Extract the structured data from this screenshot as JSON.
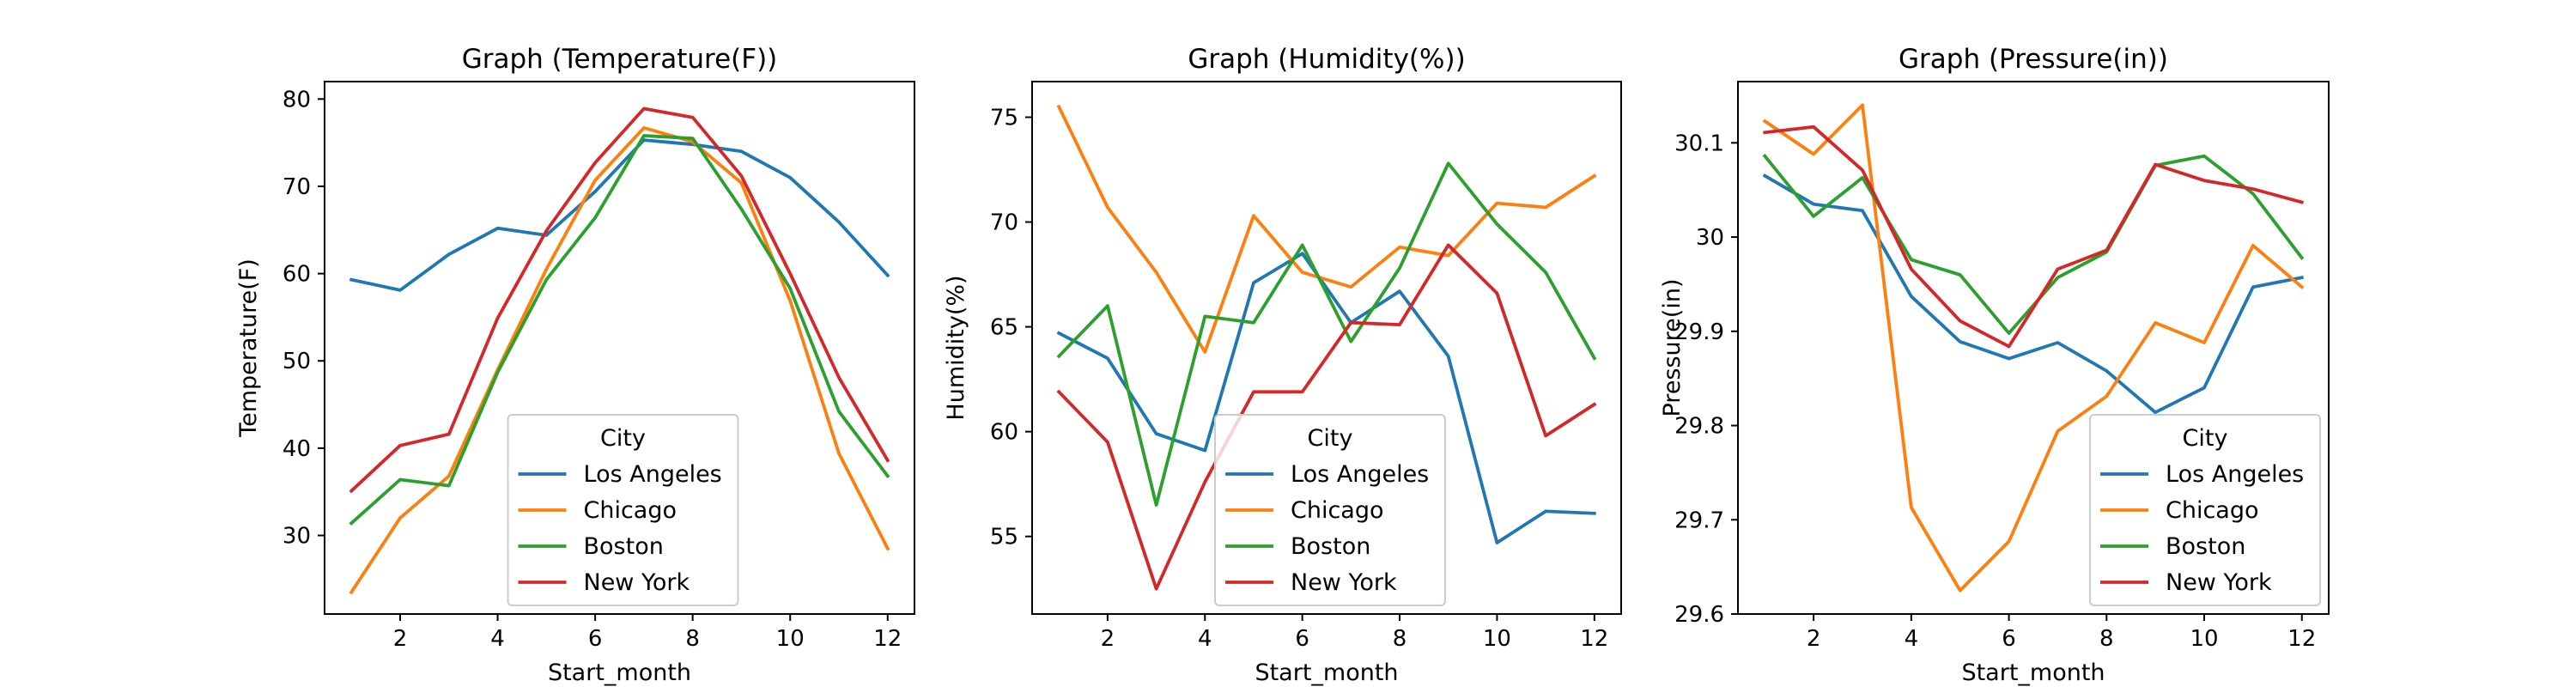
{
  "chart_data": [
    {
      "type": "line",
      "title": "Graph (Temperature(F))",
      "xlabel": "Start_month",
      "ylabel": "Temperature(F)",
      "x": [
        1,
        2,
        3,
        4,
        5,
        6,
        7,
        8,
        9,
        10,
        11,
        12
      ],
      "xticks": [
        2,
        4,
        6,
        8,
        10,
        12
      ],
      "xlim": [
        0.45,
        12.55
      ],
      "ylim": [
        21,
        82
      ],
      "yticks": [
        30,
        40,
        50,
        60,
        70,
        80
      ],
      "grid": false,
      "legend": {
        "title": "City",
        "placement": "lower center"
      },
      "series": [
        {
          "name": "Los Angeles",
          "color": "#1f77b4",
          "values": [
            59.3,
            58.1,
            62.2,
            65.2,
            64.4,
            69.4,
            75.3,
            74.8,
            74.0,
            71.0,
            65.9,
            59.8
          ]
        },
        {
          "name": "Chicago",
          "color": "#ff7f0e",
          "values": [
            23.5,
            32.0,
            36.8,
            49.0,
            60.5,
            70.7,
            76.7,
            75.1,
            70.4,
            56.9,
            39.4,
            28.5
          ]
        },
        {
          "name": "Boston",
          "color": "#2ca02c",
          "values": [
            31.4,
            36.4,
            35.7,
            48.7,
            59.3,
            66.4,
            75.8,
            75.5,
            67.4,
            58.3,
            44.2,
            36.8
          ]
        },
        {
          "name": "New York",
          "color": "#d62728",
          "values": [
            35.1,
            40.3,
            41.6,
            54.9,
            64.9,
            72.7,
            78.9,
            77.9,
            71.2,
            60.0,
            48.1,
            38.6
          ]
        }
      ]
    },
    {
      "type": "line",
      "title": "Graph (Humidity(%))",
      "xlabel": "Start_month",
      "ylabel": "Humidity(%)",
      "x": [
        1,
        2,
        3,
        4,
        5,
        6,
        7,
        8,
        9,
        10,
        11,
        12
      ],
      "xticks": [
        2,
        4,
        6,
        8,
        10,
        12
      ],
      "xlim": [
        0.45,
        12.55
      ],
      "ylim": [
        51.3,
        76.7
      ],
      "yticks": [
        55,
        60,
        65,
        70,
        75
      ],
      "grid": false,
      "legend": {
        "title": "City",
        "placement": "lower center"
      },
      "series": [
        {
          "name": "Los Angeles",
          "color": "#1f77b4",
          "values": [
            64.7,
            63.5,
            59.9,
            59.1,
            67.1,
            68.5,
            65.2,
            66.7,
            63.6,
            54.7,
            56.2,
            56.1
          ]
        },
        {
          "name": "Chicago",
          "color": "#ff7f0e",
          "values": [
            75.5,
            70.7,
            67.6,
            63.8,
            70.3,
            67.6,
            66.9,
            68.8,
            68.4,
            70.9,
            70.7,
            72.2
          ]
        },
        {
          "name": "Boston",
          "color": "#2ca02c",
          "values": [
            63.6,
            66.0,
            56.5,
            65.5,
            65.2,
            68.9,
            64.3,
            67.8,
            72.8,
            69.9,
            67.6,
            63.5
          ]
        },
        {
          "name": "New York",
          "color": "#d62728",
          "values": [
            61.9,
            59.5,
            52.5,
            57.6,
            61.9,
            61.9,
            65.2,
            65.1,
            68.9,
            66.6,
            59.8,
            61.3
          ]
        }
      ]
    },
    {
      "type": "line",
      "title": "Graph (Pressure(in))",
      "xlabel": "Start_month",
      "ylabel": "Pressure(in)",
      "x": [
        1,
        2,
        3,
        4,
        5,
        6,
        7,
        8,
        9,
        10,
        11,
        12
      ],
      "xticks": [
        2,
        4,
        6,
        8,
        10,
        12
      ],
      "xlim": [
        0.45,
        12.55
      ],
      "ylim": [
        29.6,
        30.165
      ],
      "yticks": [
        29.6,
        29.7,
        29.8,
        29.9,
        30.0,
        30.1
      ],
      "grid": false,
      "legend": {
        "title": "City",
        "placement": "lower right"
      },
      "series": [
        {
          "name": "Los Angeles",
          "color": "#1f77b4",
          "values": [
            30.065,
            30.035,
            30.028,
            29.937,
            29.889,
            29.871,
            29.888,
            29.858,
            29.814,
            29.84,
            29.947,
            29.957
          ]
        },
        {
          "name": "Chicago",
          "color": "#ff7f0e",
          "values": [
            30.123,
            30.088,
            30.14,
            29.713,
            29.625,
            29.677,
            29.794,
            29.831,
            29.909,
            29.888,
            29.991,
            29.947
          ]
        },
        {
          "name": "Boston",
          "color": "#2ca02c",
          "values": [
            30.086,
            30.022,
            30.063,
            29.976,
            29.96,
            29.898,
            29.957,
            29.984,
            30.076,
            30.086,
            30.046,
            29.978
          ]
        },
        {
          "name": "New York",
          "color": "#d62728",
          "values": [
            30.111,
            30.117,
            30.071,
            29.966,
            29.911,
            29.884,
            29.966,
            29.986,
            30.077,
            30.06,
            30.051,
            30.037
          ]
        }
      ]
    }
  ]
}
